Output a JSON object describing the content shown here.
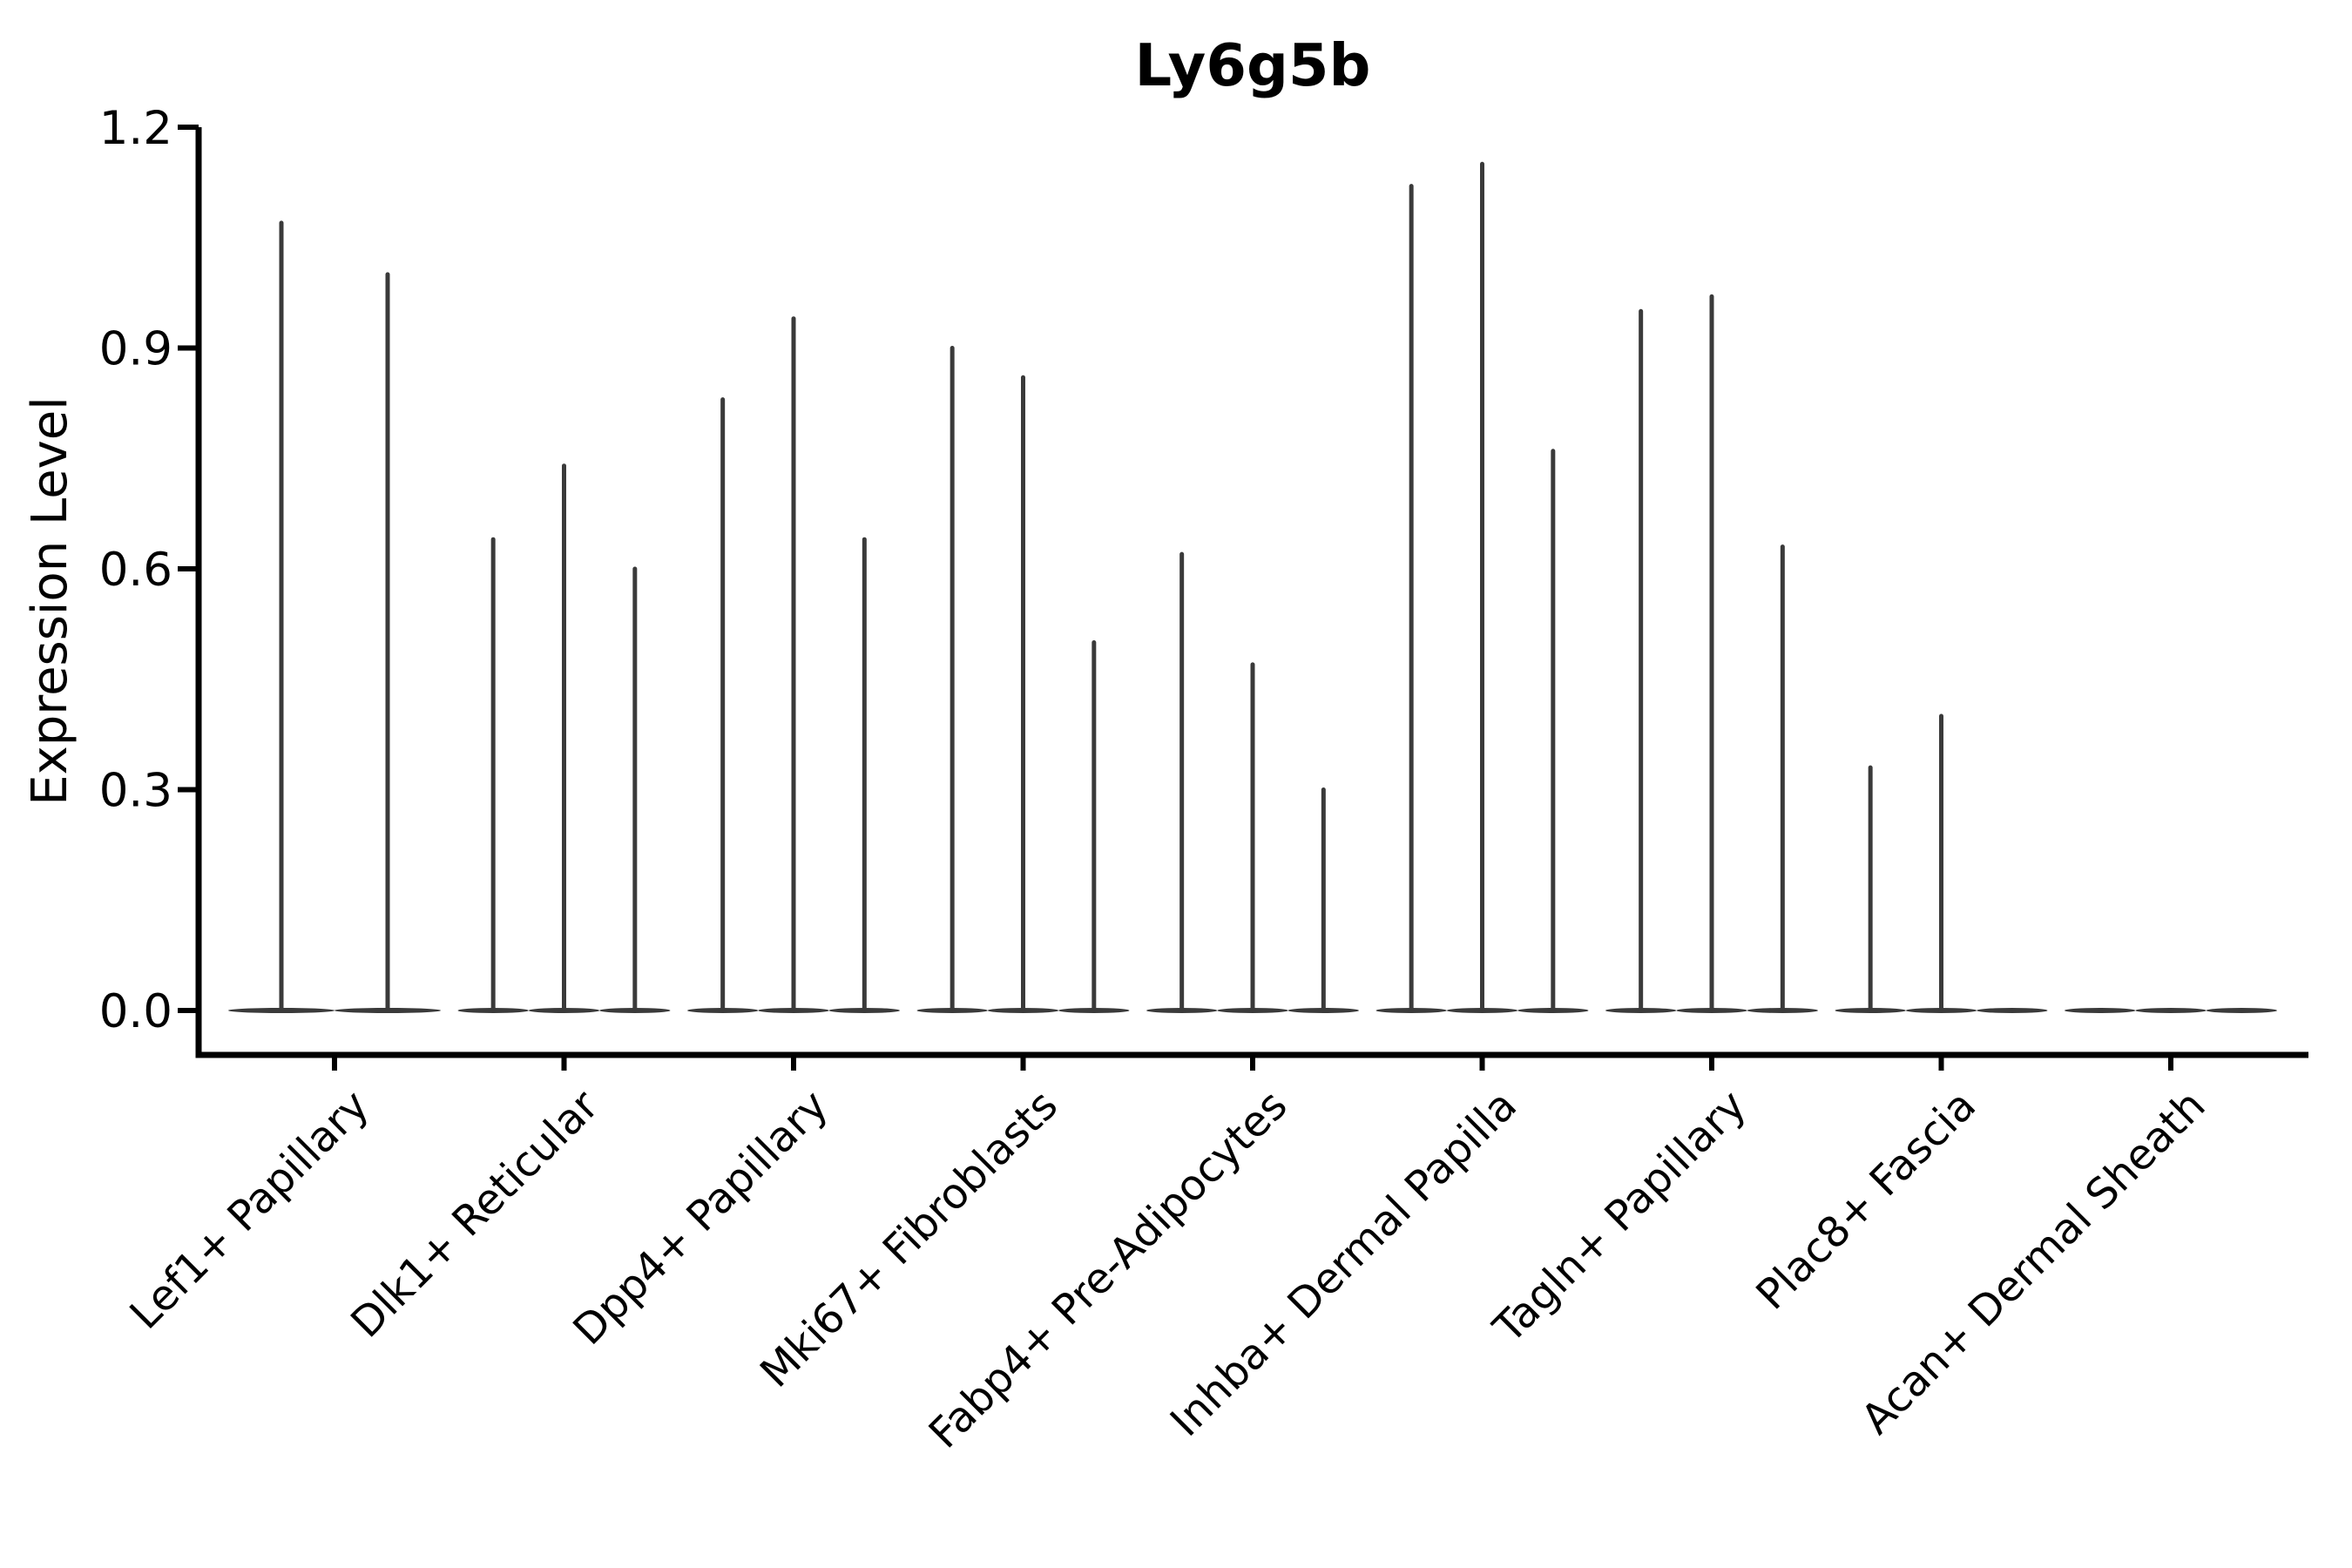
{
  "chart_data": {
    "type": "violin",
    "title": "Ly6g5b",
    "ylabel": "Expression Level",
    "xlabel": "",
    "ytick_values": [
      0.0,
      0.3,
      0.6,
      0.9,
      1.2
    ],
    "ylim": [
      -0.06,
      1.2
    ],
    "grid": false,
    "legend": "none",
    "categories": [
      "Lef1+ Papillary",
      "Dlk1+ Reticular",
      "Dpp4+ Papillary",
      "Mki67+ Fibroblasts",
      "Fabp4+ Pre-Adipocytes",
      "Inhba+ Dermal Papilla",
      "Tagln+ Papillary",
      "Plac8+ Fascia",
      "Acan+ Dermal Sheath"
    ],
    "series": [
      {
        "category": "Lef1+ Papillary",
        "violin_peaks": [
          1.07,
          1.0
        ]
      },
      {
        "category": "Dlk1+ Reticular",
        "violin_peaks": [
          0.64,
          0.74,
          0.6
        ]
      },
      {
        "category": "Dpp4+ Papillary",
        "violin_peaks": [
          0.83,
          0.94,
          0.64
        ]
      },
      {
        "category": "Mki67+ Fibroblasts",
        "violin_peaks": [
          0.9,
          0.86,
          0.5
        ]
      },
      {
        "category": "Fabp4+ Pre-Adipocytes",
        "violin_peaks": [
          0.62,
          0.47,
          0.3
        ]
      },
      {
        "category": "Inhba+ Dermal Papilla",
        "violin_peaks": [
          1.12,
          1.15,
          0.76
        ]
      },
      {
        "category": "Tagln+ Papillary",
        "violin_peaks": [
          0.95,
          0.97,
          0.63
        ]
      },
      {
        "category": "Plac8+ Fascia",
        "violin_peaks": [
          0.33,
          0.4,
          0.0
        ]
      },
      {
        "category": "Acan+ Dermal Sheath",
        "violin_peaks": [
          0.0,
          0.0,
          0.0
        ]
      }
    ],
    "description": "Zero-inflated single-cell expression: each violin collapses to a thin vertical spike rising from a flat base at 0. violin_peaks = top (max expression) of each spike within the category group; 0.0 = completely flat violin.",
    "colors": {
      "violin": "#3a3a3a",
      "axis": "#000000",
      "text": "#000000",
      "background": "#ffffff"
    }
  }
}
